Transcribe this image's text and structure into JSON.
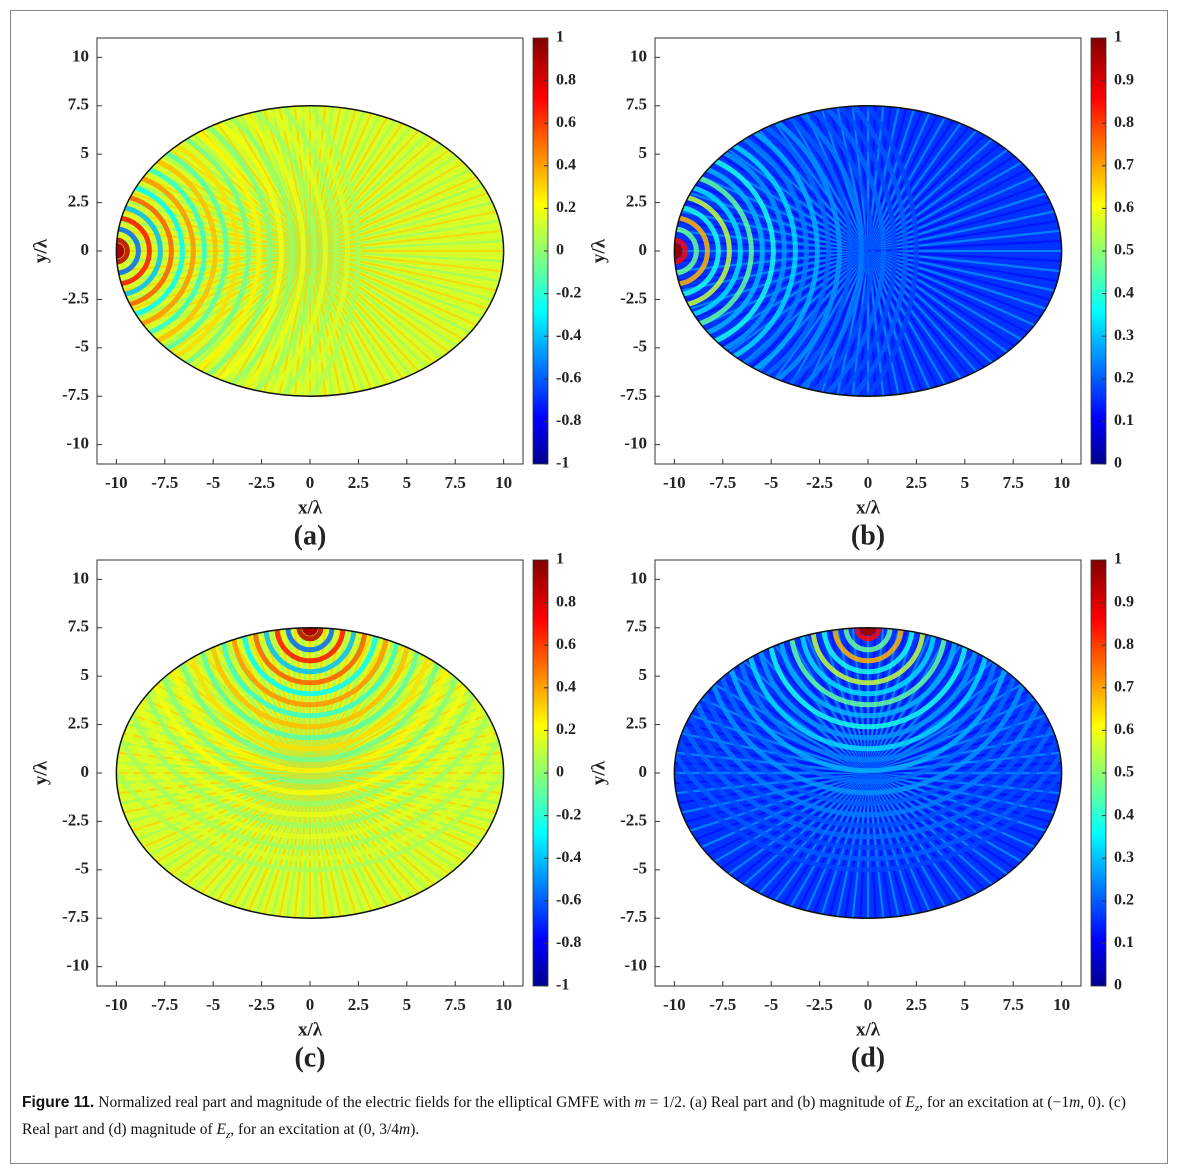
{
  "chart_data": [
    {
      "type": "heatmap",
      "panel_label": "(a)",
      "xlabel": "x/λ",
      "ylabel": "y/λ",
      "quantity": "real",
      "xlim": [
        -11,
        11
      ],
      "ylim": [
        -11,
        11
      ],
      "xticks": [
        -10,
        -7.5,
        -5,
        -2.5,
        0,
        2.5,
        5,
        7.5,
        10
      ],
      "yticks": [
        -10,
        -7.5,
        -5,
        -2.5,
        0,
        2.5,
        5,
        7.5,
        10
      ],
      "colormap": "jet",
      "clim": [
        -1,
        1
      ],
      "cticks": [
        -1,
        -0.8,
        -0.6,
        -0.4,
        -0.2,
        0,
        0.2,
        0.4,
        0.6,
        0.8,
        1
      ],
      "ellipse": {
        "semi_x": 10,
        "semi_y": 7.5
      },
      "excitation": [
        -10,
        0
      ]
    },
    {
      "type": "heatmap",
      "panel_label": "(b)",
      "xlabel": "x/λ",
      "ylabel": "y/λ",
      "quantity": "magnitude",
      "xlim": [
        -11,
        11
      ],
      "ylim": [
        -11,
        11
      ],
      "xticks": [
        -10,
        -7.5,
        -5,
        -2.5,
        0,
        2.5,
        5,
        7.5,
        10
      ],
      "yticks": [
        -10,
        -7.5,
        -5,
        -2.5,
        0,
        2.5,
        5,
        7.5,
        10
      ],
      "colormap": "jet",
      "clim": [
        0,
        1
      ],
      "cticks": [
        0,
        0.1,
        0.2,
        0.3,
        0.4,
        0.5,
        0.6,
        0.7,
        0.8,
        0.9,
        1
      ],
      "ellipse": {
        "semi_x": 10,
        "semi_y": 7.5
      },
      "excitation": [
        -10,
        0
      ]
    },
    {
      "type": "heatmap",
      "panel_label": "(c)",
      "xlabel": "x/λ",
      "ylabel": "y/λ",
      "quantity": "real",
      "xlim": [
        -11,
        11
      ],
      "ylim": [
        -11,
        11
      ],
      "xticks": [
        -10,
        -7.5,
        -5,
        -2.5,
        0,
        2.5,
        5,
        7.5,
        10
      ],
      "yticks": [
        -10,
        -7.5,
        -5,
        -2.5,
        0,
        2.5,
        5,
        7.5,
        10
      ],
      "colormap": "jet",
      "clim": [
        -1,
        1
      ],
      "cticks": [
        -1,
        -0.8,
        -0.6,
        -0.4,
        -0.2,
        0,
        0.2,
        0.4,
        0.6,
        0.8,
        1
      ],
      "ellipse": {
        "semi_x": 10,
        "semi_y": 7.5
      },
      "excitation": [
        0,
        7.5
      ]
    },
    {
      "type": "heatmap",
      "panel_label": "(d)",
      "xlabel": "x/λ",
      "ylabel": "y/λ",
      "quantity": "magnitude",
      "xlim": [
        -11,
        11
      ],
      "ylim": [
        -11,
        11
      ],
      "xticks": [
        -10,
        -7.5,
        -5,
        -2.5,
        0,
        2.5,
        5,
        7.5,
        10
      ],
      "yticks": [
        -10,
        -7.5,
        -5,
        -2.5,
        0,
        2.5,
        5,
        7.5,
        10
      ],
      "colormap": "jet",
      "clim": [
        0,
        1
      ],
      "cticks": [
        0,
        0.1,
        0.2,
        0.3,
        0.4,
        0.5,
        0.6,
        0.7,
        0.8,
        0.9,
        1
      ],
      "ellipse": {
        "semi_x": 10,
        "semi_y": 7.5
      },
      "excitation": [
        0,
        7.5
      ]
    }
  ],
  "caption": {
    "segments": [
      {
        "text": "Figure 11.",
        "style": "bold"
      },
      {
        "text": " Normalized real part and magnitude of the electric fields for the elliptical GMFE with ",
        "style": "plain"
      },
      {
        "text": "m",
        "style": "italic"
      },
      {
        "text": " = 1/2. (a) Real part and (b) magnitude of ",
        "style": "plain"
      },
      {
        "text": "E",
        "style": "italic"
      },
      {
        "text": "z",
        "style": "sub"
      },
      {
        "text": ", for an excitation at (−1",
        "style": "plain"
      },
      {
        "text": "m",
        "style": "italic"
      },
      {
        "text": ", 0). (c) Real part and (d) magnitude of ",
        "style": "plain"
      },
      {
        "text": "E",
        "style": "italic"
      },
      {
        "text": "z",
        "style": "sub"
      },
      {
        "text": ", for an excitation at (0, 3/4",
        "style": "plain"
      },
      {
        "text": "m",
        "style": "italic"
      },
      {
        "text": ").",
        "style": "plain"
      }
    ]
  }
}
